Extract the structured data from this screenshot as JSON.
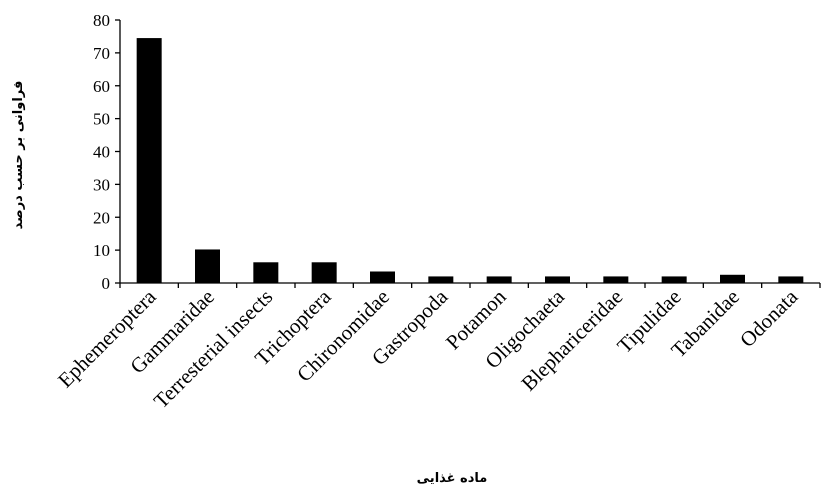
{
  "chart_data": {
    "type": "bar",
    "title": "",
    "xlabel": "ماده غذایی",
    "ylabel": "فراوانی بر حسب درصد",
    "categories": [
      "Ephemeroptera",
      "Gammaridae",
      "Terresterial  insects",
      "Trichoptera",
      "Chironomidae",
      "Gastropoda",
      "Potamon",
      "Oligochaeta",
      "Blephariceridae",
      "Tipulidae",
      "Tabanidae",
      "Odonata"
    ],
    "series": [
      {
        "values": [
          74.5,
          10.2,
          6.3,
          6.3,
          3.5,
          2,
          2,
          2,
          2,
          2,
          2.5,
          2
        ]
      }
    ],
    "ylim": [
      0,
      80
    ],
    "yticks": [
      "0",
      "10",
      "20",
      "30",
      "40",
      "50",
      "60",
      "70",
      "80"
    ],
    "grid": false,
    "bar_color": "#000000"
  }
}
